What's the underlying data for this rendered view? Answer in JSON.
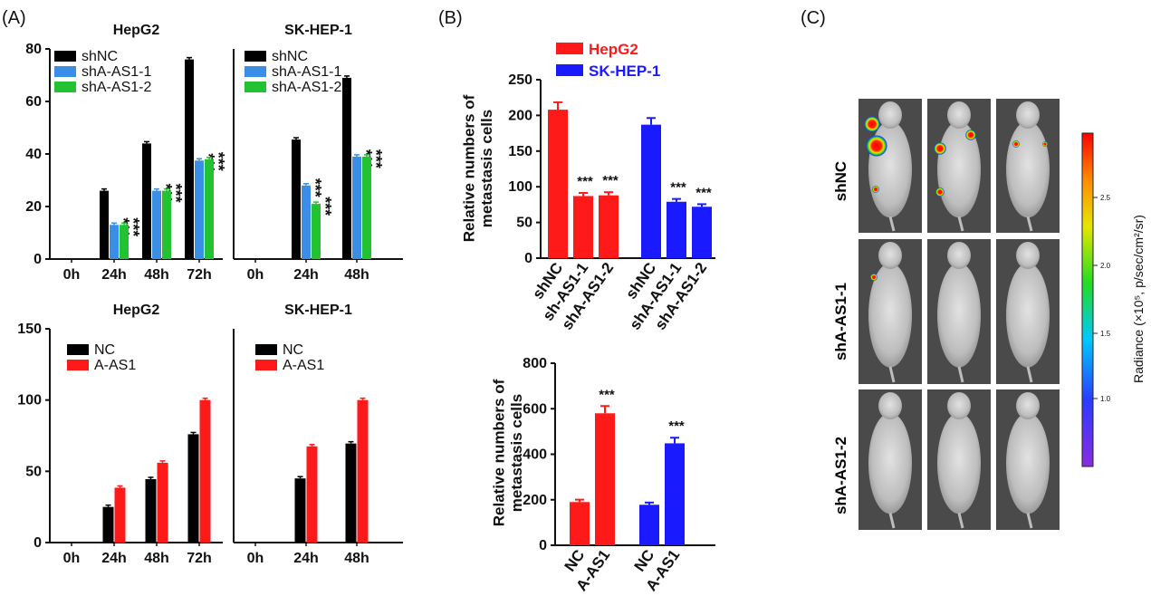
{
  "panel_labels": [
    "(A)",
    "(B)",
    "(C)"
  ],
  "chart_data": [
    {
      "id": "A1",
      "type": "bar",
      "title": "HepG2",
      "categories": [
        "0h",
        "24h",
        "48h",
        "72h"
      ],
      "series": [
        {
          "name": "shNC",
          "color": "#000000",
          "values": [
            0,
            26,
            44,
            76
          ]
        },
        {
          "name": "shA-AS1-1",
          "color": "#3a8ee6",
          "values": [
            0,
            13,
            26,
            37.5
          ]
        },
        {
          "name": "shA-AS1-2",
          "color": "#22c232",
          "values": [
            0,
            13,
            26,
            38
          ]
        }
      ],
      "ylim": [
        0,
        80
      ],
      "yticks": [
        0,
        20,
        40,
        60,
        80
      ],
      "significance": {
        "24h": [
          "***",
          "***"
        ],
        "48h": [
          "***",
          "***"
        ],
        "72h": [
          "***",
          "***"
        ]
      }
    },
    {
      "id": "A2",
      "type": "bar",
      "title": "SK-HEP-1",
      "categories": [
        "0h",
        "24h",
        "48h"
      ],
      "series": [
        {
          "name": "shNC",
          "color": "#000000",
          "values": [
            0,
            45.5,
            69
          ]
        },
        {
          "name": "shA-AS1-1",
          "color": "#3a8ee6",
          "values": [
            0,
            28,
            39
          ]
        },
        {
          "name": "shA-AS1-2",
          "color": "#22c232",
          "values": [
            0,
            21,
            39
          ]
        }
      ],
      "ylim": [
        0,
        80
      ],
      "yticks": [],
      "significance": {
        "24h": [
          "***",
          "***"
        ],
        "48h": [
          "***",
          "***"
        ]
      }
    },
    {
      "id": "A3",
      "type": "bar",
      "title": "HepG2",
      "categories": [
        "0h",
        "24h",
        "48h",
        "72h"
      ],
      "series": [
        {
          "name": "NC",
          "color": "#000000",
          "values": [
            0,
            25,
            44.5,
            76
          ]
        },
        {
          "name": "A-AS1",
          "color": "#ff1a1a",
          "values": [
            0,
            38.5,
            56,
            100
          ]
        }
      ],
      "ylim": [
        0,
        150
      ],
      "yticks": [
        0,
        50,
        100,
        150
      ],
      "significance": {
        "24h": [
          "",
          "***"
        ],
        "48h": [
          "",
          "***"
        ],
        "72h": [
          "",
          "***"
        ]
      }
    },
    {
      "id": "A4",
      "type": "bar",
      "title": "SK-HEP-1",
      "categories": [
        "0h",
        "24h",
        "48h"
      ],
      "series": [
        {
          "name": "NC",
          "color": "#000000",
          "values": [
            0,
            45,
            69.5
          ]
        },
        {
          "name": "A-AS1",
          "color": "#ff1a1a",
          "values": [
            0,
            67.5,
            100
          ]
        }
      ],
      "ylim": [
        0,
        150
      ],
      "yticks": [],
      "significance": {
        "24h": [
          "",
          "***"
        ],
        "48h": [
          "",
          "***"
        ]
      }
    },
    {
      "id": "B1",
      "type": "bar",
      "ylabel": "Relative numbers of\nmetastasis cells",
      "categories": [
        "shNC",
        "sh-AS1-1",
        "shA-AS1-2",
        "shNC",
        "shA-AS1-1",
        "shA-AS1-2"
      ],
      "series": [
        {
          "name": "HepG2",
          "color": "#ff1a1a",
          "values": [
            208,
            87,
            88,
            null,
            null,
            null
          ]
        },
        {
          "name": "SK-HEP-1",
          "color": "#1a1aff",
          "values": [
            null,
            null,
            null,
            187,
            79,
            72
          ]
        }
      ],
      "ylim": [
        0,
        250
      ],
      "yticks": [
        0,
        50,
        100,
        150,
        200,
        250
      ],
      "significance": [
        "",
        "***",
        "***",
        "",
        "***",
        "***"
      ]
    },
    {
      "id": "B2",
      "type": "bar",
      "ylabel": "Relative numbers of\nmetastasis cells",
      "categories": [
        "NC",
        "A-AS1",
        "NC",
        "A-AS1"
      ],
      "values": [
        190,
        580,
        178,
        448
      ],
      "colors": [
        "#ff1a1a",
        "#ff1a1a",
        "#1a1aff",
        "#1a1aff"
      ],
      "ylim": [
        0,
        800
      ],
      "yticks": [
        0,
        200,
        400,
        600,
        800
      ],
      "significance": [
        "",
        "***",
        "",
        "***"
      ]
    }
  ],
  "imaging": {
    "rows": [
      "shNC",
      "shA-AS1-1",
      "shA-AS1-2"
    ],
    "colorbar_label": "Radiance (×10⁵, p/sec/cm²/sr)",
    "colorbar_ticks": [
      "2.5",
      "2.0",
      "1.5",
      "1.0"
    ]
  }
}
